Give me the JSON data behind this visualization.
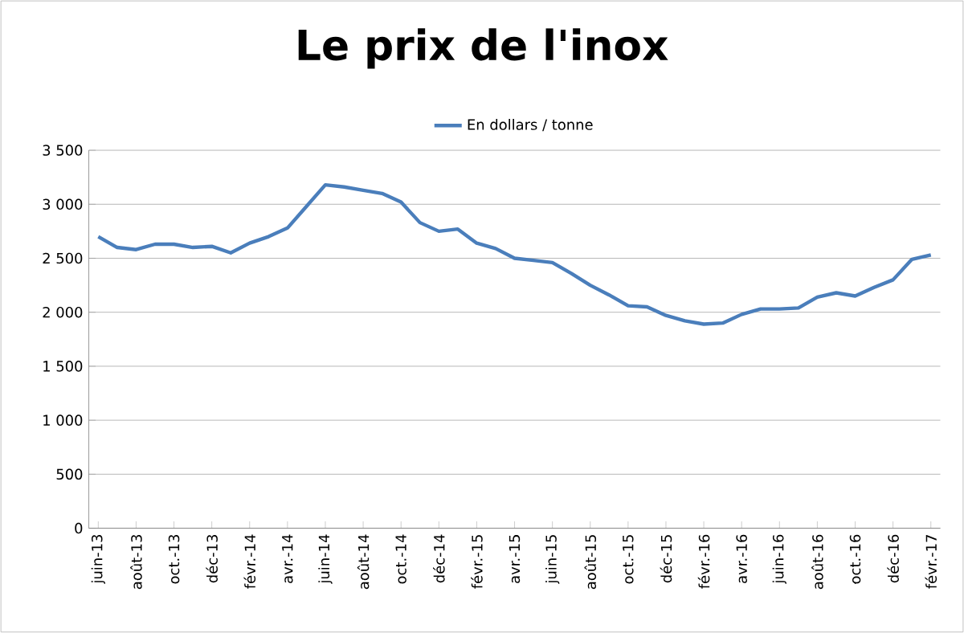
{
  "chart_data": {
    "type": "line",
    "title": "Le prix de l'inox",
    "categories": [
      "juin-13",
      null,
      "août-13",
      null,
      "oct.-13",
      null,
      "déc-13",
      null,
      "févr.-14",
      null,
      "avr.-14",
      null,
      "juin-14",
      null,
      "août-14",
      null,
      "oct.-14",
      null,
      "déc-14",
      null,
      "févr.-15",
      null,
      "avr.-15",
      null,
      "juin-15",
      null,
      "août-15",
      null,
      "oct.-15",
      null,
      "déc-15",
      null,
      "févr.-16",
      null,
      "avr.-16",
      null,
      "juin-16",
      null,
      "août-16",
      null,
      "oct.-16",
      null,
      "déc-16",
      null,
      "févr.-17"
    ],
    "series": [
      {
        "name": "En dollars / tonne",
        "color": "#4a7ebb",
        "values": [
          2700,
          2600,
          2580,
          2630,
          2630,
          2600,
          2610,
          2550,
          2640,
          2700,
          2780,
          2980,
          3180,
          3160,
          3130,
          3100,
          3020,
          2830,
          2750,
          2770,
          2640,
          2590,
          2500,
          2480,
          2460,
          2360,
          2250,
          2160,
          2060,
          2050,
          1970,
          1920,
          1890,
          1900,
          1980,
          2030,
          2030,
          2040,
          2140,
          2180,
          2150,
          2230,
          2300,
          2490,
          2530
        ]
      }
    ],
    "ylim": [
      0,
      3500
    ],
    "yticks": [
      0,
      {
        "value": 500,
        "label": "500"
      },
      {
        "value": 1000,
        "label": "1 000"
      },
      {
        "value": 1500,
        "label": "1 500"
      },
      {
        "value": 2000,
        "label": "2 000"
      },
      {
        "value": 2500,
        "label": "2 500"
      },
      {
        "value": 3000,
        "label": "3 000"
      },
      {
        "value": 3500,
        "label": "3 500"
      }
    ],
    "grid": "y",
    "legend": "top",
    "marker": "none",
    "line_style": "solid"
  }
}
